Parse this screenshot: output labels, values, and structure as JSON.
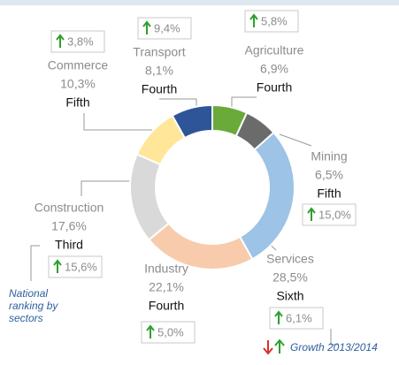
{
  "chart_data": {
    "type": "pie",
    "donut": true,
    "categories": [
      "Transport",
      "Agriculture",
      "Mining",
      "Services",
      "Industry",
      "Construction",
      "Commerce"
    ],
    "values": [
      8.1,
      6.9,
      6.5,
      28.5,
      22.1,
      17.6,
      10.3
    ],
    "value_labels": [
      "8,1%",
      "6,9%",
      "6,5%",
      "28,5%",
      "22,1%",
      "17,6%",
      "10,3%"
    ],
    "colors": [
      "#2e5597",
      "#6aaa3a",
      "#6b6b6b",
      "#9dc3e6",
      "#f8cbad",
      "#d9d9d9",
      "#ffe699"
    ],
    "ranks": [
      "Fourth",
      "Fourth",
      "Fifth",
      "Sixth",
      "Fourth",
      "Third",
      "Fifth"
    ],
    "growth": {
      "values": [
        9.4,
        5.8,
        15.0,
        6.1,
        5.0,
        15.6,
        3.8
      ],
      "value_labels": [
        "9,4%",
        "5,8%",
        "15,0%",
        "6,1%",
        "5,0%",
        "15,6%",
        "3,8%"
      ]
    },
    "annotations": [
      "National ranking by sectors",
      "Growth 2013/2014"
    ]
  }
}
